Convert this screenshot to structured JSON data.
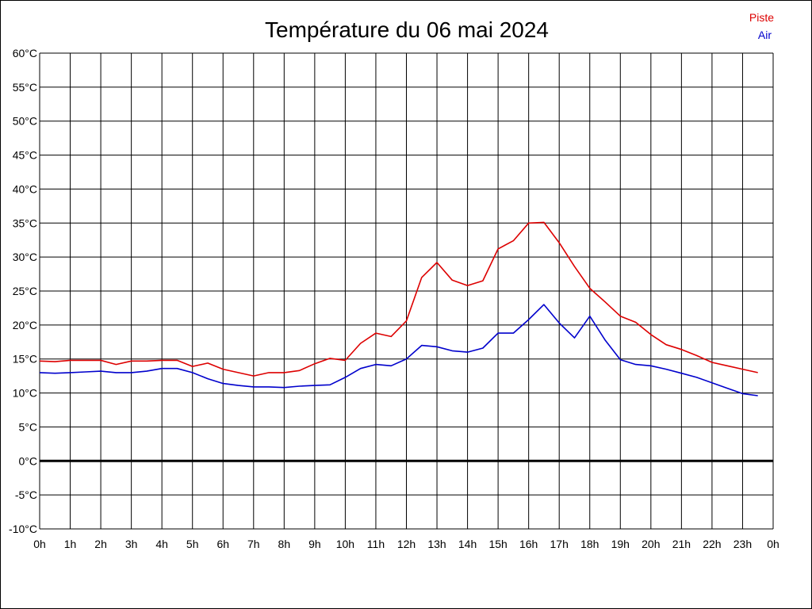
{
  "chart_data": {
    "type": "line",
    "title": "Température du 06 mai 2024",
    "xlabel": "",
    "ylabel": "",
    "x_tick_labels": [
      "0h",
      "1h",
      "2h",
      "3h",
      "4h",
      "5h",
      "6h",
      "7h",
      "8h",
      "9h",
      "10h",
      "11h",
      "12h",
      "13h",
      "14h",
      "15h",
      "16h",
      "17h",
      "18h",
      "19h",
      "20h",
      "21h",
      "22h",
      "23h",
      "0h"
    ],
    "y_tick_labels": [
      "60°C",
      "55°C",
      "50°C",
      "45°C",
      "40°C",
      "35°C",
      "30°C",
      "25°C",
      "20°C",
      "15°C",
      "10°C",
      "5°C",
      "0°C",
      "-5°C",
      "-10°C"
    ],
    "xlim": [
      0,
      24
    ],
    "ylim": [
      -10,
      60
    ],
    "y_step": 5,
    "grid": true,
    "legend_position": "top-right",
    "x": [
      0,
      0.5,
      1,
      1.5,
      2,
      2.5,
      3,
      3.5,
      4,
      4.5,
      5,
      5.5,
      6,
      6.5,
      7,
      7.5,
      8,
      8.5,
      9,
      9.5,
      10,
      10.5,
      11,
      11.5,
      12,
      12.5,
      13,
      13.5,
      14,
      14.5,
      15,
      15.5,
      16,
      16.5,
      17,
      17.5,
      18,
      18.5,
      19,
      19.5,
      20,
      20.5,
      21,
      21.5,
      22,
      22.5,
      23,
      23.5
    ],
    "series": [
      {
        "name": "Piste",
        "color": "#dd0000",
        "values": [
          14.7,
          14.6,
          14.8,
          14.8,
          14.8,
          14.2,
          14.7,
          14.7,
          14.8,
          14.8,
          13.9,
          14.4,
          13.5,
          13.0,
          12.5,
          13.0,
          13.0,
          13.3,
          14.3,
          15.1,
          14.8,
          17.3,
          18.8,
          18.3,
          20.6,
          27.0,
          29.2,
          26.6,
          25.8,
          26.5,
          31.2,
          32.4,
          35.0,
          35.1,
          32.1,
          28.6,
          25.4,
          23.4,
          21.3,
          20.4,
          18.6,
          17.1,
          16.4,
          15.5,
          14.5,
          14.0,
          13.5,
          13.0
        ]
      },
      {
        "name": "Air",
        "color": "#0000cc",
        "values": [
          13.0,
          12.9,
          13.0,
          13.1,
          13.2,
          13.0,
          13.0,
          13.2,
          13.6,
          13.6,
          13.0,
          12.1,
          11.4,
          11.1,
          10.9,
          10.9,
          10.8,
          11.0,
          11.1,
          11.2,
          12.3,
          13.6,
          14.2,
          14.0,
          15.0,
          17.0,
          16.8,
          16.2,
          16.0,
          16.6,
          18.8,
          18.8,
          20.8,
          23.0,
          20.3,
          18.1,
          21.3,
          17.8,
          14.9,
          14.2,
          14.0,
          13.5,
          12.9,
          12.3,
          11.5,
          10.7,
          9.9,
          9.6
        ]
      }
    ]
  }
}
